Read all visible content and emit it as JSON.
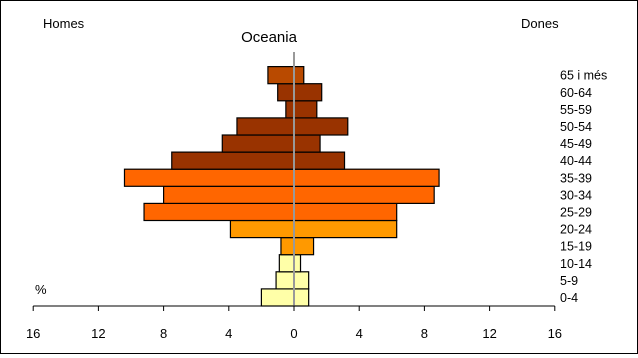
{
  "chart_data": {
    "type": "bar",
    "orientation": "horizontal-population-pyramid",
    "title": "Oceania",
    "left_label": "Homes",
    "right_label": "Dones",
    "unit_label": "%",
    "categories": [
      "0-4",
      "5-9",
      "10-14",
      "15-19",
      "20-24",
      "25-29",
      "30-34",
      "35-39",
      "40-44",
      "45-49",
      "50-54",
      "55-59",
      "60-64",
      "65 i més"
    ],
    "series": [
      {
        "name": "Homes",
        "values": [
          2.0,
          1.1,
          0.9,
          0.8,
          3.9,
          9.2,
          8.0,
          10.4,
          7.5,
          4.4,
          3.5,
          0.5,
          1.0,
          1.6
        ]
      },
      {
        "name": "Dones",
        "values": [
          0.9,
          0.9,
          0.4,
          1.2,
          6.3,
          6.3,
          8.6,
          8.9,
          3.1,
          1.6,
          3.3,
          1.4,
          1.7,
          0.6
        ]
      }
    ],
    "xlim": [
      -16,
      16
    ],
    "x_ticks": [
      "16",
      "12",
      "8",
      "4",
      "0",
      "4",
      "8",
      "12",
      "16"
    ],
    "colors": {
      "0-14": "#ffffa8",
      "15-24": "#ff9900",
      "25-39": "#ff6600",
      "40-64": "#993300",
      "65+": "#b94a00",
      "border": "#000000",
      "center_line": "#999999"
    },
    "grid": false,
    "legend": "none"
  }
}
